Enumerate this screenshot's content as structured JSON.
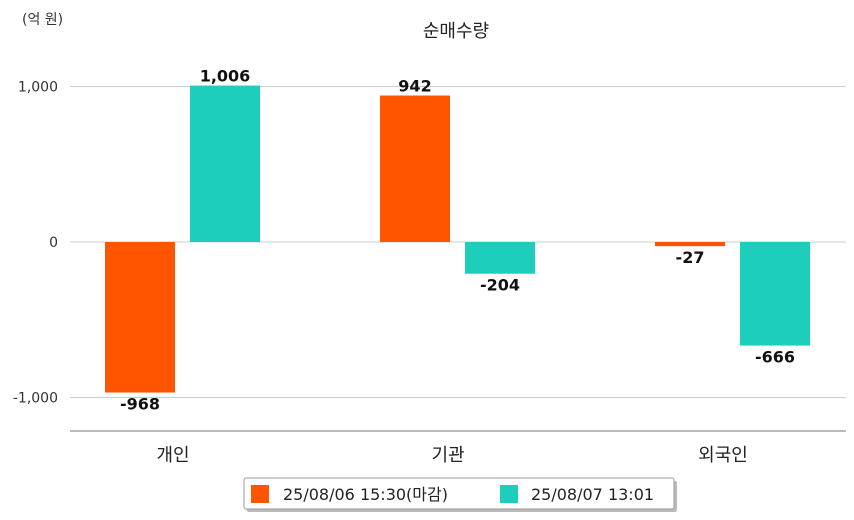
{
  "chart_data": {
    "type": "bar",
    "title": "순매수량",
    "unit_label": "(억 원)",
    "categories": [
      "개인",
      "기관",
      "외국인"
    ],
    "series": [
      {
        "name": "25/08/06 15:30(마감)",
        "values": [
          -968,
          942,
          -27
        ],
        "labels": [
          "-968",
          "942",
          "-27"
        ],
        "color": "#ff5500"
      },
      {
        "name": "25/08/07 13:01",
        "values": [
          1006,
          -204,
          -666
        ],
        "labels": [
          "1,006",
          "-204",
          "-666"
        ],
        "color": "#1ecebc"
      }
    ],
    "y_ticks": [
      1000,
      0,
      -1000
    ],
    "y_tick_labels": [
      "1,000",
      "0",
      "-1,000"
    ],
    "ylim": [
      -1200,
      1100
    ],
    "grid": true,
    "legend_position": "bottom"
  }
}
